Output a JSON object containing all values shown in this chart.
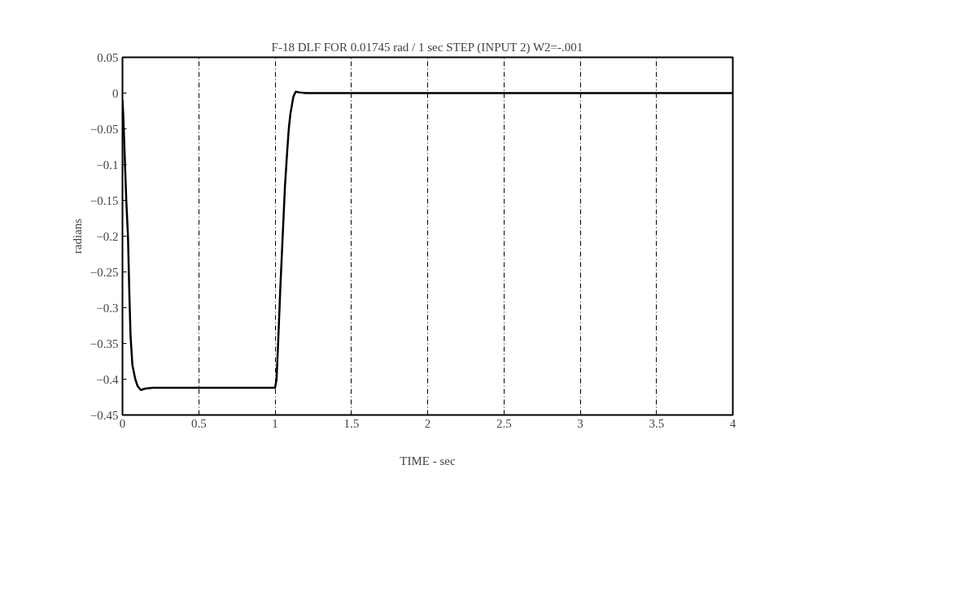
{
  "chart_data": {
    "type": "line",
    "title": "F-18 DLF FOR 0.01745 rad / 1 sec STEP (INPUT 2) W2=-.001",
    "xlabel": "TIME - sec",
    "ylabel": "radians",
    "x": [
      0,
      0.005,
      0.015,
      0.025,
      0.036,
      0.045,
      0.053,
      0.065,
      0.084,
      0.1,
      0.12,
      0.15,
      0.2,
      0.5,
      1.0,
      1.01,
      1.02,
      1.035,
      1.05,
      1.065,
      1.08,
      1.09,
      1.1,
      1.12,
      1.135,
      1.16,
      1.2,
      1.3,
      4.0
    ],
    "series": [
      {
        "color": "#000000",
        "values": [
          -0.01,
          -0.03,
          -0.09,
          -0.15,
          -0.2,
          -0.28,
          -0.34,
          -0.38,
          -0.4,
          -0.41,
          -0.415,
          -0.413,
          -0.412,
          -0.412,
          -0.412,
          -0.4,
          -0.35,
          -0.27,
          -0.2,
          -0.13,
          -0.08,
          -0.05,
          -0.03,
          -0.005,
          0.002,
          0.001,
          0,
          0,
          0
        ]
      }
    ],
    "xlim": [
      0,
      4
    ],
    "ylim": [
      -0.45,
      0.05
    ],
    "xticks": [
      0,
      0.5,
      1,
      1.5,
      2,
      2.5,
      3,
      3.5,
      4
    ],
    "yticks": [
      0.05,
      0,
      -0.05,
      -0.1,
      -0.15,
      -0.2,
      -0.25,
      -0.3,
      -0.35,
      -0.4,
      -0.45
    ],
    "grid": "x",
    "line_style": "solid",
    "marker": "none"
  }
}
